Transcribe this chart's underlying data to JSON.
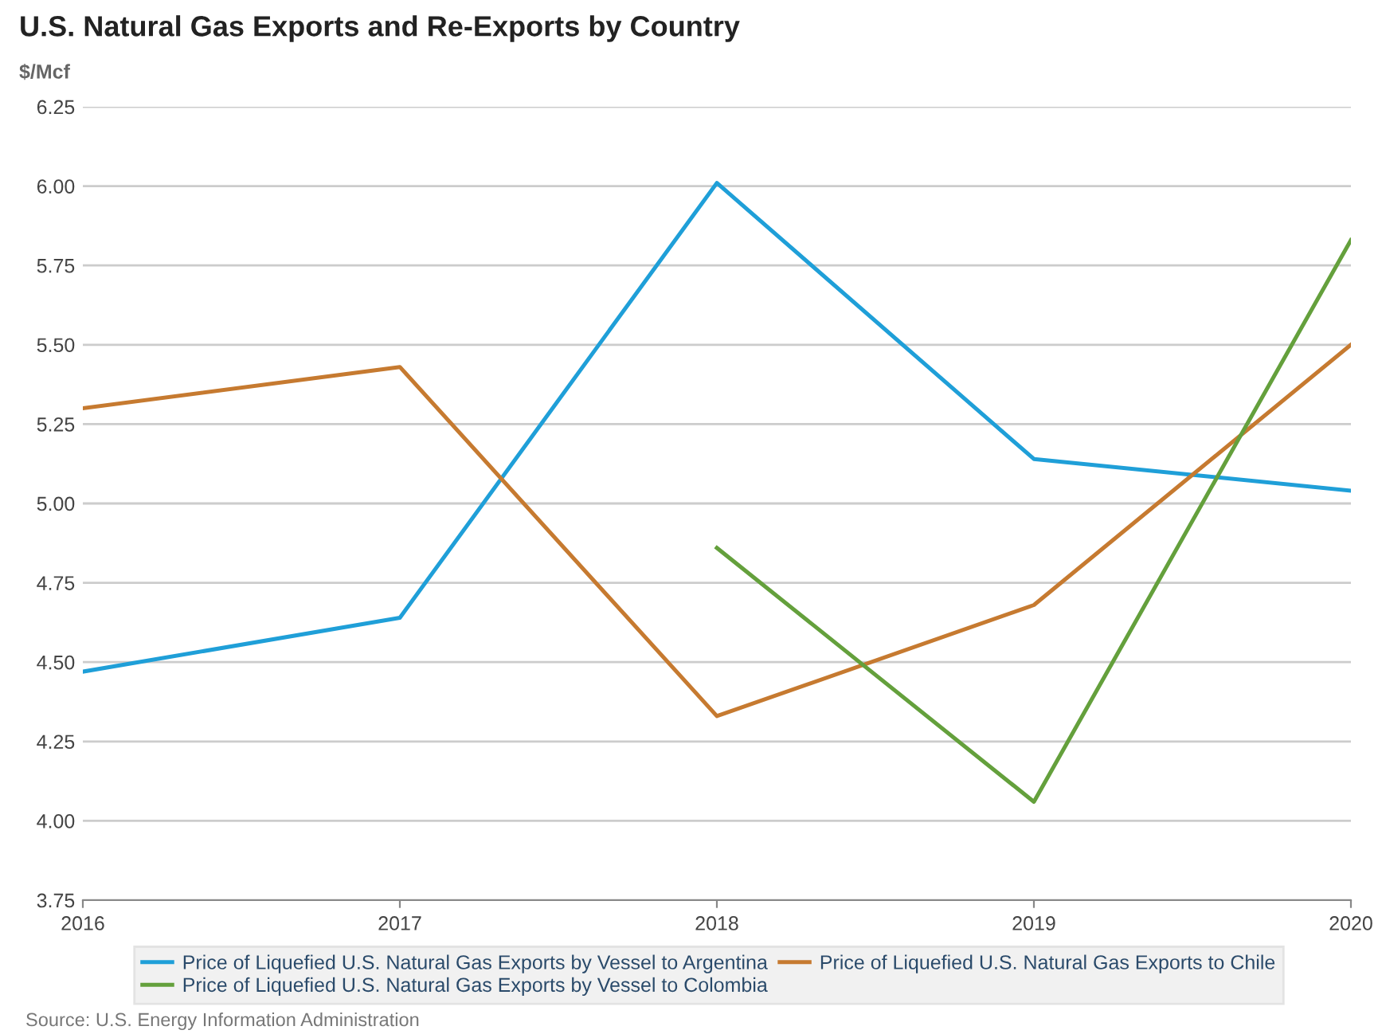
{
  "chart_data": {
    "type": "line",
    "title": "U.S. Natural Gas Exports and Re-Exports by Country",
    "ylabel": "$/Mcf",
    "x": [
      2016,
      2017,
      2018,
      2019,
      2020
    ],
    "series": [
      {
        "name": "Price of Liquefied U.S. Natural Gas Exports by Vessel to Argentina",
        "color": "#1f9fd8",
        "values": [
          4.47,
          4.64,
          6.01,
          5.14,
          5.04
        ]
      },
      {
        "name": "Price of Liquefied U.S. Natural Gas Exports to Chile",
        "color": "#c67a30",
        "values": [
          5.3,
          5.43,
          4.33,
          4.68,
          5.5
        ]
      },
      {
        "name": "Price of Liquefied U.S. Natural Gas Exports by Vessel to Colombia",
        "color": "#64a03c",
        "values": [
          null,
          null,
          4.86,
          4.06,
          5.83
        ]
      }
    ],
    "xlim": [
      2016,
      2020
    ],
    "xticks": [
      2016,
      2017,
      2018,
      2019,
      2020
    ],
    "ylim": [
      3.75,
      6.25
    ],
    "yticks": [
      3.75,
      {
        "value": 4,
        "label": "4.00"
      },
      4.25,
      {
        "value": 4.5,
        "label": "4.50"
      },
      4.75,
      {
        "value": 5,
        "label": "5.00"
      },
      5.25,
      {
        "value": 5.5,
        "label": "5.50"
      },
      5.75,
      {
        "value": 6,
        "label": "6.00"
      },
      6.25
    ],
    "grid": "y",
    "legend": "bottom",
    "marker": "none",
    "line_style": "solid",
    "annotations": [
      "Source: U.S. Energy Information Administration"
    ]
  }
}
